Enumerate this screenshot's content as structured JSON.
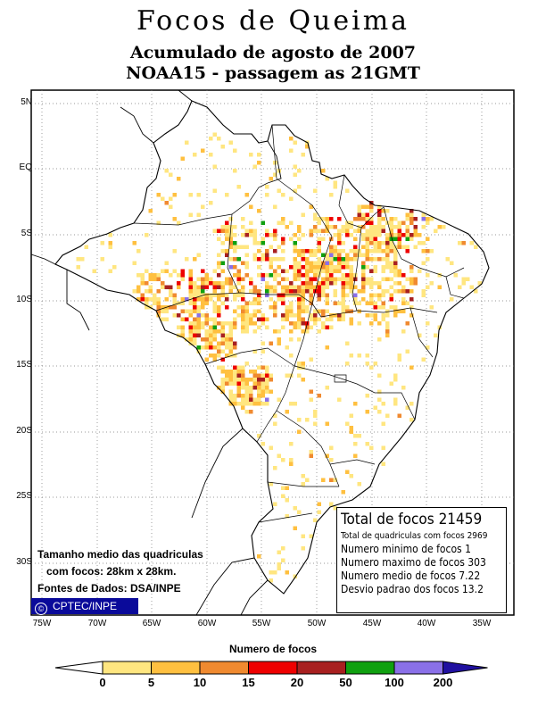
{
  "title": "Focos de Queima",
  "subtitle1": "Acumulado de agosto de 2007",
  "subtitle2": "NOAA15 - passagem as 21GMT",
  "lat_labels": [
    "5N",
    "EQ",
    "5S",
    "10S",
    "15S",
    "20S",
    "25S",
    "30S"
  ],
  "lon_labels": [
    "75W",
    "70W",
    "65W",
    "60W",
    "55W",
    "50W",
    "45W",
    "40W",
    "35W"
  ],
  "grid_info": {
    "line1": "Tamanho medio das quadriculas",
    "line2": "com focos: 28km x 28km.",
    "line3": "Fontes de Dados: DSA/INPE"
  },
  "badge": {
    "symbol": "©",
    "label": "CPTEC/INPE"
  },
  "stats": {
    "total": "Total de focos 21459",
    "quadriculas": "Total de quadriculas com focos 2969",
    "minimo": "Numero minimo de focos 1",
    "maximo": "Numero maximo de focos 303",
    "medio": "Numero medio de focos 7.22",
    "desvio": "Desvio padrao dos focos 13.2"
  },
  "legend": {
    "title": "Numero de focos",
    "ticks": [
      "0",
      "5",
      "10",
      "15",
      "20",
      "50",
      "100",
      "200"
    ],
    "colors": [
      "#ffe680",
      "#ffc040",
      "#f08a30",
      "#ee0000",
      "#a82020",
      "#10a010",
      "#8a70e8",
      "#2010a0"
    ]
  }
}
